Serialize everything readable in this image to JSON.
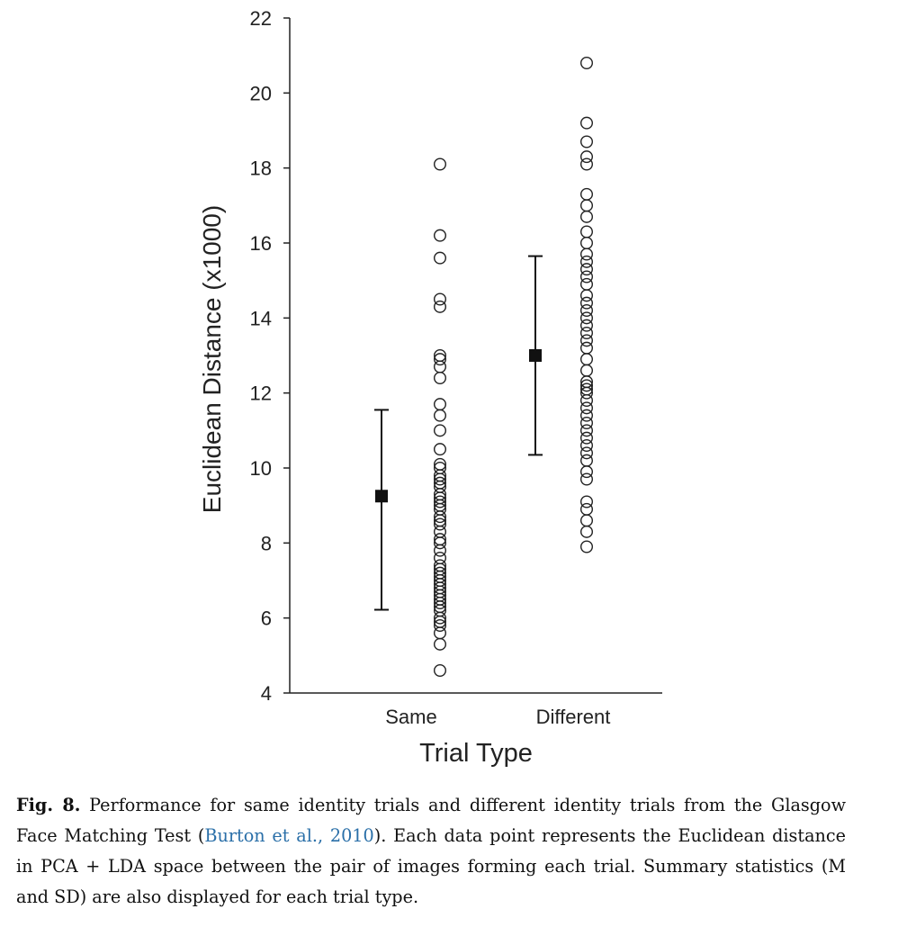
{
  "chart_data": {
    "type": "scatter",
    "xlabel": "Trial Type",
    "ylabel": "Euclidean Distance (x1000)",
    "ylim": [
      4,
      22
    ],
    "yticks": [
      4,
      6,
      8,
      10,
      12,
      14,
      16,
      18,
      20,
      22
    ],
    "categories": [
      "Same",
      "Different"
    ],
    "grid": false,
    "series": [
      {
        "category": "Same",
        "values": [
          4.6,
          5.3,
          5.6,
          5.8,
          5.9,
          6.0,
          6.2,
          6.3,
          6.4,
          6.5,
          6.6,
          6.7,
          6.8,
          6.9,
          7.0,
          7.1,
          7.2,
          7.3,
          7.4,
          7.6,
          7.8,
          8.0,
          8.1,
          8.3,
          8.5,
          8.6,
          8.7,
          8.9,
          9.0,
          9.1,
          9.2,
          9.3,
          9.5,
          9.6,
          9.7,
          9.8,
          10.0,
          10.1,
          10.5,
          11.0,
          11.4,
          11.7,
          12.4,
          12.7,
          12.9,
          13.0,
          14.3,
          14.5,
          15.6,
          16.2,
          18.1
        ],
        "mean": 9.25,
        "sd_low": 6.22,
        "sd_high": 11.55
      },
      {
        "category": "Different",
        "values": [
          7.9,
          8.3,
          8.6,
          8.9,
          9.1,
          9.7,
          9.9,
          10.2,
          10.4,
          10.6,
          10.8,
          11.0,
          11.2,
          11.4,
          11.6,
          11.8,
          12.0,
          12.1,
          12.2,
          12.3,
          12.6,
          12.9,
          13.2,
          13.4,
          13.6,
          13.8,
          14.0,
          14.2,
          14.4,
          14.6,
          14.9,
          15.1,
          15.3,
          15.5,
          15.7,
          16.0,
          16.3,
          16.7,
          17.0,
          17.3,
          18.1,
          18.3,
          18.7,
          19.2,
          20.8
        ],
        "mean": 13.0,
        "sd_low": 10.35,
        "sd_high": 15.65
      }
    ]
  },
  "caption": {
    "fig_label": "Fig. 8.",
    "text_before": " Performance for same identity trials and different identity trials from the Glasgow Face Matching Test (",
    "citation": "Burton et al., 2010",
    "text_after": "). Each data point represents the Euclidean distance in PCA + LDA space between the pair of images forming each trial. Summary statistics (M and SD) are also displayed for each trial type."
  }
}
